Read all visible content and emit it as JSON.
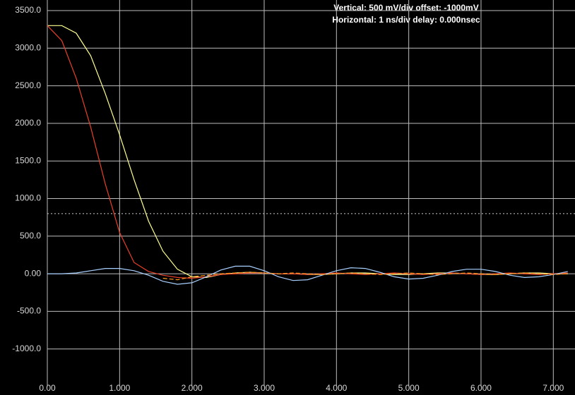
{
  "chart_data": {
    "type": "line",
    "annotations": [
      "Vertical: 500 mV/div  offset: -1000mV",
      "Horizontal: 1 ns/div  delay: 0.000nsec"
    ],
    "x": [
      0,
      0.2,
      0.4,
      0.6,
      0.8,
      1.0,
      1.2,
      1.4,
      1.6,
      1.8,
      2.0,
      2.2,
      2.4,
      2.6,
      2.8,
      3.0,
      3.2,
      3.4,
      3.6,
      3.8,
      4.0,
      4.2,
      4.4,
      4.6,
      4.8,
      5.0,
      5.2,
      5.4,
      5.6,
      5.8,
      6.0,
      6.2,
      6.4,
      6.6,
      6.8,
      7.0,
      7.2
    ],
    "series": [
      {
        "color": "#ffff90",
        "values": [
          3300,
          3300,
          3200,
          2900,
          2400,
          1850,
          1250,
          700,
          300,
          60,
          -40,
          -50,
          -10,
          10,
          20,
          10,
          0,
          0,
          -10,
          -10,
          0,
          10,
          10,
          0,
          -10,
          -10,
          0,
          10,
          10,
          0,
          -10,
          -10,
          0,
          10,
          10,
          0,
          0
        ]
      },
      {
        "color": "#e8402a",
        "values": [
          3300,
          3100,
          2600,
          1950,
          1200,
          550,
          150,
          30,
          -20,
          -50,
          -60,
          -40,
          -10,
          0,
          10,
          10,
          0,
          0,
          -10,
          0,
          10,
          0,
          -10,
          0,
          10,
          0,
          -10,
          0,
          10,
          0,
          -10,
          0,
          10,
          0,
          -10,
          0,
          10
        ]
      },
      {
        "color": "#a8d0ff",
        "values": [
          0,
          0,
          10,
          40,
          70,
          70,
          40,
          -20,
          -100,
          -140,
          -120,
          -40,
          50,
          100,
          100,
          40,
          -40,
          -90,
          -80,
          -20,
          40,
          80,
          70,
          20,
          -40,
          -70,
          -60,
          -20,
          30,
          60,
          60,
          30,
          -20,
          -50,
          -40,
          -10,
          30
        ]
      },
      {
        "color": "#ff9a20",
        "dashed": true,
        "values": [
          null,
          null,
          null,
          null,
          null,
          null,
          null,
          null,
          -60,
          -80,
          -40,
          -20,
          0,
          10,
          20,
          10,
          0,
          10,
          0,
          -10,
          0,
          10,
          0,
          -10,
          0,
          10,
          0,
          -10,
          0,
          10,
          0,
          -10,
          0,
          10,
          0,
          -10,
          0
        ]
      }
    ],
    "xlim": [
      0,
      7.3
    ],
    "xticks": [
      {
        "value": 0,
        "label": "0.00"
      },
      {
        "value": 1,
        "label": "1.000"
      },
      {
        "value": 2,
        "label": "2.000"
      },
      {
        "value": 3,
        "label": "3.000"
      },
      {
        "value": 4,
        "label": "4.000"
      },
      {
        "value": 5,
        "label": "5.000"
      },
      {
        "value": 6,
        "label": "6.000"
      },
      {
        "value": 7,
        "label": "7.000"
      }
    ],
    "ylim": [
      -1500,
      3500
    ],
    "yticks": [
      {
        "value": 3500,
        "label": "3500.0"
      },
      {
        "value": 3000,
        "label": "3000.0"
      },
      {
        "value": 2500,
        "label": "2500.0"
      },
      {
        "value": 2000,
        "label": "2000.0"
      },
      {
        "value": 1500,
        "label": "1500.0"
      },
      {
        "value": 1000,
        "label": "1000.0"
      },
      {
        "value": 500,
        "label": "500.0"
      },
      {
        "value": 0,
        "label": "0.00"
      },
      {
        "value": -500,
        "label": "-500.0"
      },
      {
        "value": -1000,
        "label": "-1000.0"
      }
    ],
    "reference_line": 800,
    "grid": true
  }
}
